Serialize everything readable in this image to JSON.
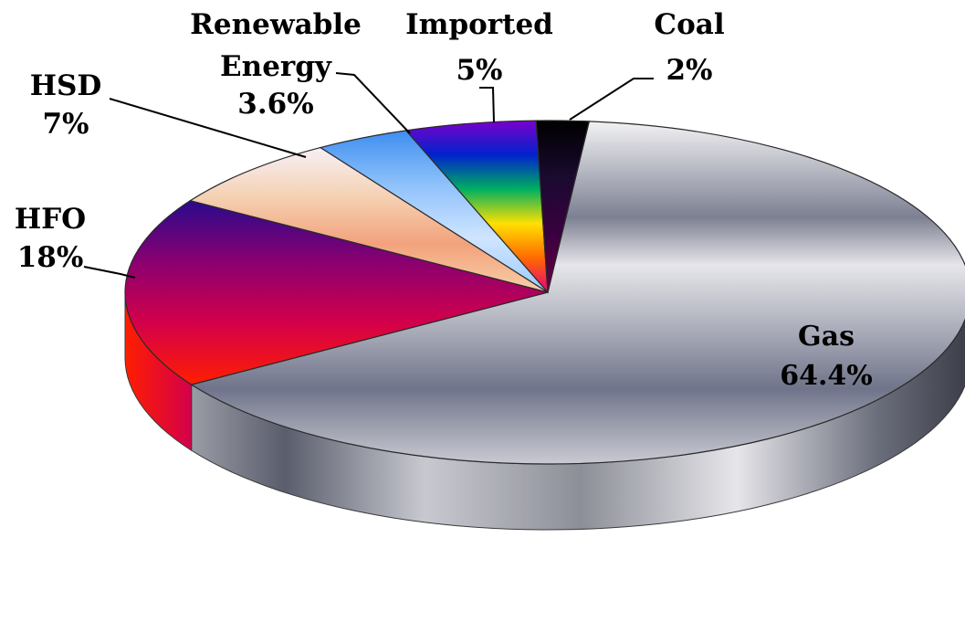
{
  "chart_data": {
    "type": "pie",
    "style": "3d-exploded-none",
    "title": "",
    "slices": [
      {
        "name": "Gas",
        "value": 64.4,
        "label_lines": [
          "Gas",
          "64.4%"
        ],
        "colors": [
          "#e2e2e6",
          "#6f7384",
          "#dcdce0",
          "#8c8f9e"
        ]
      },
      {
        "name": "HFO",
        "value": 18,
        "label_lines": [
          "HFO",
          "18%"
        ],
        "colors": [
          "#2a0a8c",
          "#8a0070",
          "#d4004a",
          "#ff1e00"
        ]
      },
      {
        "name": "HSD",
        "value": 7,
        "label_lines": [
          "HSD",
          "7%"
        ],
        "colors": [
          "#f6f0f6",
          "#f5d2b4",
          "#f2a27c",
          "#f7cfa7"
        ]
      },
      {
        "name": "Renewable Energy",
        "value": 3.6,
        "label_lines": [
          "Renewable",
          "Energy",
          "3.6%"
        ],
        "colors": [
          "#3d8ef0",
          "#8ec1fb",
          "#cfe5ff",
          "#9ccbff"
        ]
      },
      {
        "name": "Imported",
        "value": 5,
        "label_lines": [
          "Imported",
          "5%"
        ],
        "colors": [
          "#7a00cc",
          "#0022cc",
          "#00b060",
          "#ffe000",
          "#ff6a00",
          "#e6007a"
        ]
      },
      {
        "name": "Coal",
        "value": 2,
        "label_lines": [
          "Coal",
          "2%"
        ],
        "colors": [
          "#000000",
          "#1a0a30",
          "#3a0040",
          "#6a0040"
        ]
      }
    ]
  }
}
